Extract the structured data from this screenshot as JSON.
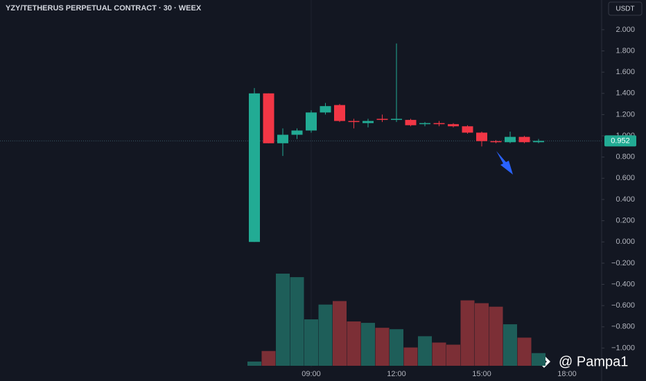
{
  "chart_data": {
    "type": "candlestick",
    "title": "YZY/TETHERUS PERPETUAL CONTRACT · 30 · WEEX",
    "y_unit": "USDT",
    "categories": [
      null,
      null,
      null,
      null,
      "09:00",
      null,
      null,
      null,
      null,
      null,
      "12:00",
      null,
      null,
      null,
      null,
      null,
      "15:00",
      null,
      null,
      null,
      null,
      null,
      "18:00"
    ],
    "open": [
      0,
      1.4,
      0.93,
      1.01,
      1.05,
      1.22,
      1.29,
      1.14,
      1.12,
      1.16,
      1.15,
      1.15,
      1.11,
      1.12,
      1.11,
      1.09,
      1.03,
      0.95,
      0.94,
      0.99,
      0.94,
      null,
      null
    ],
    "high": [
      1.45,
      1.4,
      1.07,
      1.07,
      1.24,
      1.31,
      1.3,
      1.16,
      1.16,
      1.2,
      1.87,
      1.16,
      1.13,
      1.14,
      1.12,
      1.1,
      1.04,
      0.96,
      1.04,
      1.0,
      0.97,
      null,
      null
    ],
    "low": [
      0,
      0.93,
      0.81,
      0.97,
      1.03,
      1.2,
      1.13,
      1.07,
      1.08,
      1.13,
      1.13,
      1.09,
      1.09,
      1.09,
      1.08,
      1.02,
      0.9,
      0.93,
      0.93,
      0.93,
      0.93,
      null,
      null
    ],
    "close": [
      1.4,
      0.93,
      1.01,
      1.05,
      1.22,
      1.28,
      1.14,
      1.13,
      1.14,
      1.15,
      1.16,
      1.1,
      1.12,
      1.11,
      1.09,
      1.03,
      0.95,
      0.94,
      0.99,
      0.94,
      0.952,
      null,
      null
    ],
    "volume": [
      6,
      21,
      131,
      126,
      66,
      87,
      92,
      63,
      61,
      54,
      52,
      26,
      42,
      33,
      30,
      93,
      89,
      84,
      59,
      40,
      18,
      null,
      null
    ],
    "up_color": "#22ab94",
    "down_color": "#f23645",
    "up_volume_color": "#1e5e59",
    "down_volume_color": "#7c2f36",
    "last_price": 0.952,
    "ylim": [
      -1.18,
      2.28
    ],
    "yticks": [
      {
        "value": 2,
        "label": "2.000"
      },
      {
        "value": 1.8,
        "label": "1.800"
      },
      {
        "value": 1.6,
        "label": "1.600"
      },
      {
        "value": 1.4,
        "label": "1.400"
      },
      {
        "value": 1.2,
        "label": "1.200"
      },
      {
        "value": 1,
        "label": "1.000"
      },
      {
        "value": 0.8,
        "label": "0.800"
      },
      {
        "value": 0.6,
        "label": "0.600"
      },
      {
        "value": 0.4,
        "label": "0.400"
      },
      {
        "value": 0.2,
        "label": "0.200"
      },
      {
        "value": 0,
        "label": "0.000"
      },
      {
        "value": -0.2,
        "label": "−0.200"
      },
      {
        "value": -0.4,
        "label": "−0.400"
      },
      {
        "value": -0.6,
        "label": "−0.600"
      },
      {
        "value": -0.8,
        "label": "−0.800"
      },
      {
        "value": -1,
        "label": "−1.000"
      }
    ],
    "watermark": "@ Pampa1"
  }
}
